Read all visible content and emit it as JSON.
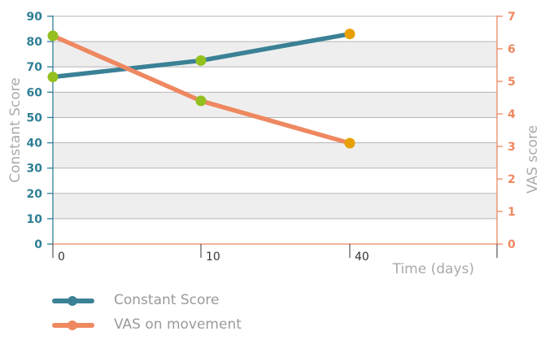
{
  "chart_data": {
    "type": "line",
    "x_categories": [
      "0",
      "10",
      "40"
    ],
    "x_extra_tick": true,
    "xlabel": "Time (days)",
    "y_left": {
      "label": "Constant Score",
      "ylim": [
        0,
        90
      ],
      "ticks": [
        0,
        10,
        20,
        30,
        40,
        50,
        60,
        70,
        80,
        90
      ]
    },
    "y_right": {
      "label": "VAS score",
      "ylim": [
        0,
        7
      ],
      "ticks": [
        0,
        1,
        2,
        3,
        4,
        5,
        6,
        7
      ]
    },
    "series": [
      {
        "name": "Constant Score",
        "axis": "left",
        "color": "#3b8196",
        "values": [
          66,
          72.5,
          83
        ]
      },
      {
        "name": "VAS on movement",
        "axis": "right",
        "color": "#ee8860",
        "values": [
          6.4,
          4.4,
          3.1
        ]
      }
    ],
    "marker_colors": [
      "#93c01f",
      "#93c01f",
      "#e8a000"
    ],
    "grid": "horizontal bands",
    "legend_position": "bottom-left"
  },
  "colors": {
    "left_axis": "#2f7f96",
    "right_axis": "#ee8860",
    "axis_label": "#aaaaaa",
    "band": "#eeeeee",
    "gridline": "#b5b5b5",
    "x_axis_text": "#333333"
  }
}
